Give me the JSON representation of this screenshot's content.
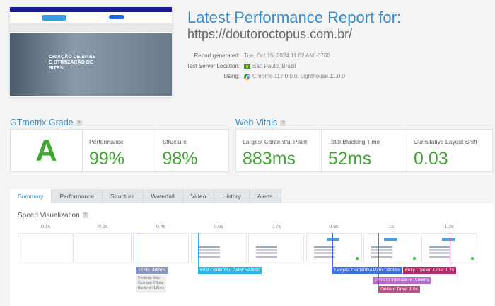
{
  "header": {
    "title": "Latest Performance Report for:",
    "url": "https://doutoroctopus.com.br/"
  },
  "thumbnail": {
    "hero_text": "CRIAÇÃO DE SITES E OTIMIZAÇÃO DE SITES"
  },
  "info": [
    {
      "label": "Report generated:",
      "value": "Tue, Oct 15, 2024 11:02 AM -0700"
    },
    {
      "label": "Test Server Location:",
      "value": "São Paulo, Brazil",
      "icon": "brazil-flag-icon"
    },
    {
      "label": "Using:",
      "value": "Chrome 117.0.0.0, Lighthouse 11.0.0",
      "icon": "chrome-icon"
    }
  ],
  "grade": {
    "heading": "GTmetrix Grade",
    "help": "?",
    "letter": "A",
    "performance_label": "Performance",
    "performance": "99%",
    "structure_label": "Structure",
    "structure": "98%"
  },
  "vitals": {
    "heading": "Web Vitals",
    "help": "?",
    "items": [
      {
        "label": "Largest Contentful Paint",
        "value": "883ms"
      },
      {
        "label": "Total Blocking Time",
        "value": "52ms"
      },
      {
        "label": "Cumulative Layout Shift",
        "value": "0.03"
      }
    ]
  },
  "tabs": [
    "Summary",
    "Performance",
    "Structure",
    "Waterfall",
    "Video",
    "History",
    "Alerts"
  ],
  "speed": {
    "heading": "Speed Visualization",
    "help": "?",
    "frames": [
      "0.1s",
      "0.3s",
      "0.4s",
      "0.6s",
      "0.7s",
      "0.9s",
      "1s",
      "1.2s"
    ],
    "ttfb": "TTFB: 380ms",
    "ttfb_details": [
      "Redirect: 0ms",
      "Connect: 245ms",
      "Backend: 135ms"
    ],
    "fcp": "First Contentful Paint: 540ms",
    "lcp": "Largest Contentful Paint: 883ms",
    "tti": "Time to Interactive: 988ms",
    "onload": "Onload Time: 1.0s",
    "fully": "Fully Loaded Time: 1.2s"
  },
  "colors": {
    "accent": "#3b8dc9",
    "good": "#41a833",
    "ttfb": "#8a96c0",
    "fcp": "#28b6ea",
    "lcp": "#3d6fe0",
    "tti": "#b86ad0",
    "onload": "#b85585",
    "fully": "#b52a6a"
  }
}
